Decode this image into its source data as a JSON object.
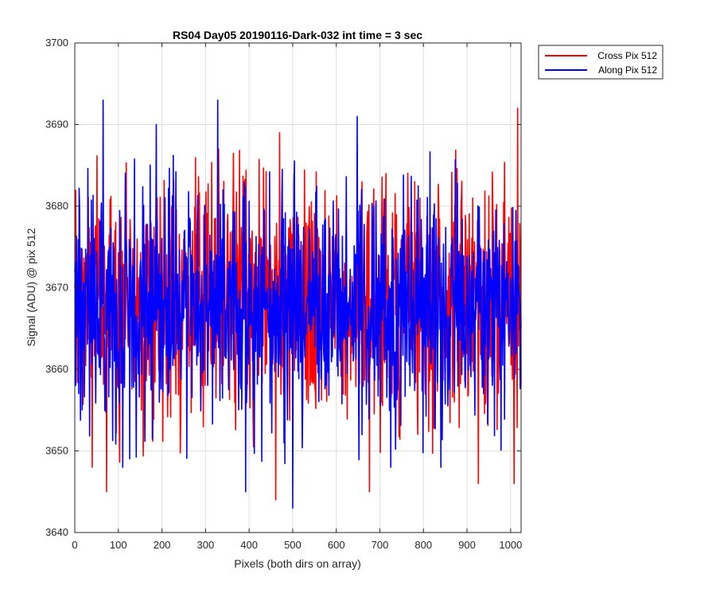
{
  "chart_data": {
    "type": "line",
    "title": "RS04 Day05 20190116-Dark-032 int time = 3 sec",
    "xlabel": "Pixels (both dirs on array)",
    "ylabel": "Signal (ADU) @ pix 512",
    "xlim": [
      0,
      1024
    ],
    "ylim": [
      3640,
      3700
    ],
    "xticks": [
      0,
      100,
      200,
      300,
      400,
      500,
      600,
      700,
      800,
      900,
      1000
    ],
    "yticks": [
      3640,
      3650,
      3660,
      3670,
      3680,
      3690,
      3700
    ],
    "grid": true,
    "legend_position": "outside-top-right",
    "series": [
      {
        "name": "Cross Pix 512",
        "color": "#ff0000",
        "mean": 3668.5,
        "x": [
          0,
          40,
          73,
          189,
          330,
          461,
          470,
          502,
          676,
          780,
          840,
          926,
          1008,
          1016,
          1024
        ],
        "values": [
          3670,
          3648,
          3645,
          3681,
          3687,
          3644,
          3689,
          3662,
          3645,
          3683,
          3654,
          3646,
          3646,
          3692,
          3658
        ]
      },
      {
        "name": "Along Pix 512",
        "color": "#0000ff",
        "mean": 3668,
        "x": [
          0,
          65,
          110,
          187,
          328,
          392,
          480,
          500,
          648,
          840,
          1024
        ],
        "values": [
          3672,
          3693,
          3648,
          3690,
          3693,
          3645,
          3651,
          3643,
          3691,
          3648,
          3665
        ]
      }
    ]
  }
}
